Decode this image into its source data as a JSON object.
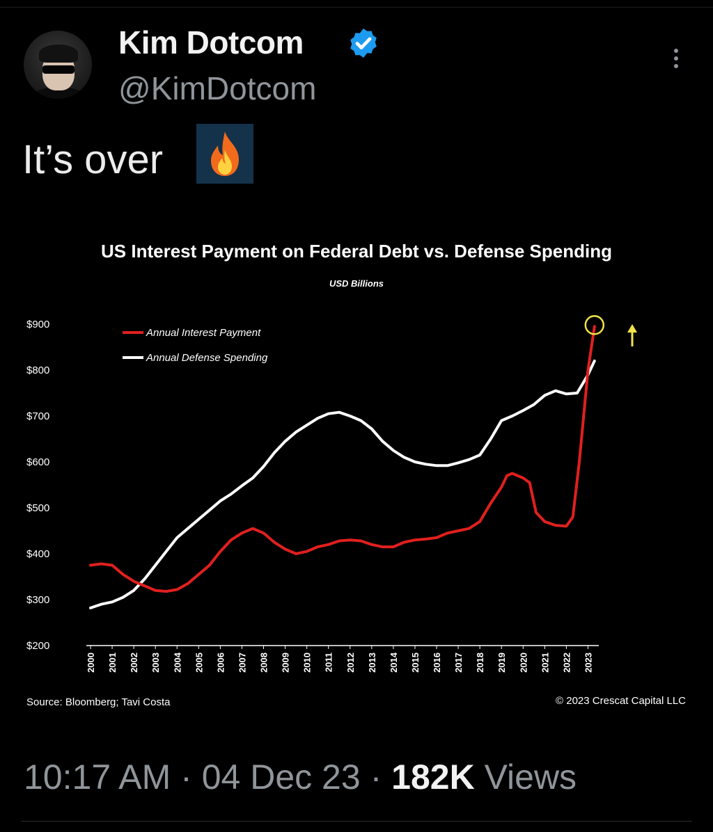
{
  "tweet": {
    "display_name": "Kim Dotcom",
    "handle": "@KimDotcom",
    "text": "It’s over",
    "emoji": "fire-emoji",
    "timestamp_time": "10:17 AM",
    "timestamp_date": "04 Dec 23",
    "views_count": "182K",
    "views_label": "Views",
    "separator": "·",
    "verified_color": "#1d9bf0"
  },
  "chart_data": {
    "type": "line",
    "title": "US Interest Payment on Federal Debt vs. Defense Spending",
    "subtitle": "USD Billions",
    "y_tick_labels": [
      "$900",
      "$800",
      "$700",
      "$600",
      "$500",
      "$400",
      "$300",
      "$200"
    ],
    "y_ticks": [
      900,
      800,
      700,
      600,
      500,
      400,
      300,
      200
    ],
    "ylim": [
      200,
      900
    ],
    "xlim": [
      2000,
      2023.5
    ],
    "x_tick_labels": [
      "2000",
      "2001",
      "2002",
      "2003",
      "2004",
      "2005",
      "2006",
      "2007",
      "2008",
      "2009",
      "2010",
      "2011",
      "2012",
      "2013",
      "2014",
      "2015",
      "2016",
      "2017",
      "2018",
      "2019",
      "2020",
      "2021",
      "2022",
      "2023"
    ],
    "grid": false,
    "legend_position": "top-left",
    "source": "Source: Bloomberg; Tavi Costa",
    "copyright": "© 2023 Crescat Capital LLC",
    "series": [
      {
        "name": "Annual Interest Payment",
        "color": "#e0201e",
        "x": [
          2000,
          2000.5,
          2001,
          2001.5,
          2002,
          2002.5,
          2003,
          2003.5,
          2004,
          2004.5,
          2005,
          2005.5,
          2006,
          2006.5,
          2007,
          2007.5,
          2008,
          2008.5,
          2009,
          2009.5,
          2010,
          2010.5,
          2011,
          2011.5,
          2012,
          2012.5,
          2013,
          2013.5,
          2014,
          2014.5,
          2015,
          2015.5,
          2016,
          2016.5,
          2017,
          2017.5,
          2018,
          2018.5,
          2019,
          2019.25,
          2019.5,
          2020,
          2020.3,
          2020.6,
          2021,
          2021.5,
          2022,
          2022.3,
          2022.6,
          2023,
          2023.3
        ],
        "y": [
          375,
          378,
          375,
          355,
          340,
          330,
          320,
          318,
          322,
          335,
          355,
          375,
          405,
          430,
          445,
          455,
          445,
          425,
          410,
          400,
          405,
          415,
          420,
          428,
          430,
          428,
          420,
          415,
          415,
          425,
          430,
          432,
          435,
          445,
          450,
          455,
          470,
          510,
          545,
          570,
          575,
          565,
          555,
          490,
          470,
          462,
          460,
          480,
          600,
          800,
          895
        ]
      },
      {
        "name": "Annual Defense Spending",
        "color": "#ffffff",
        "x": [
          2000,
          2000.5,
          2001,
          2001.5,
          2002,
          2002.5,
          2003,
          2003.5,
          2004,
          2004.5,
          2005,
          2005.5,
          2006,
          2006.5,
          2007,
          2007.5,
          2008,
          2008.5,
          2009,
          2009.5,
          2010,
          2010.5,
          2011,
          2011.5,
          2012,
          2012.5,
          2013,
          2013.5,
          2014,
          2014.5,
          2015,
          2015.5,
          2016,
          2016.5,
          2017,
          2017.5,
          2018,
          2018.5,
          2019,
          2019.5,
          2020,
          2020.5,
          2021,
          2021.5,
          2022,
          2022.5,
          2023,
          2023.3
        ],
        "y": [
          282,
          290,
          295,
          305,
          320,
          345,
          375,
          405,
          435,
          455,
          475,
          495,
          515,
          530,
          548,
          565,
          590,
          620,
          645,
          665,
          680,
          695,
          705,
          708,
          700,
          690,
          672,
          645,
          625,
          610,
          600,
          595,
          592,
          592,
          598,
          605,
          615,
          650,
          690,
          700,
          712,
          725,
          745,
          755,
          748,
          750,
          790,
          820
        ]
      }
    ]
  }
}
